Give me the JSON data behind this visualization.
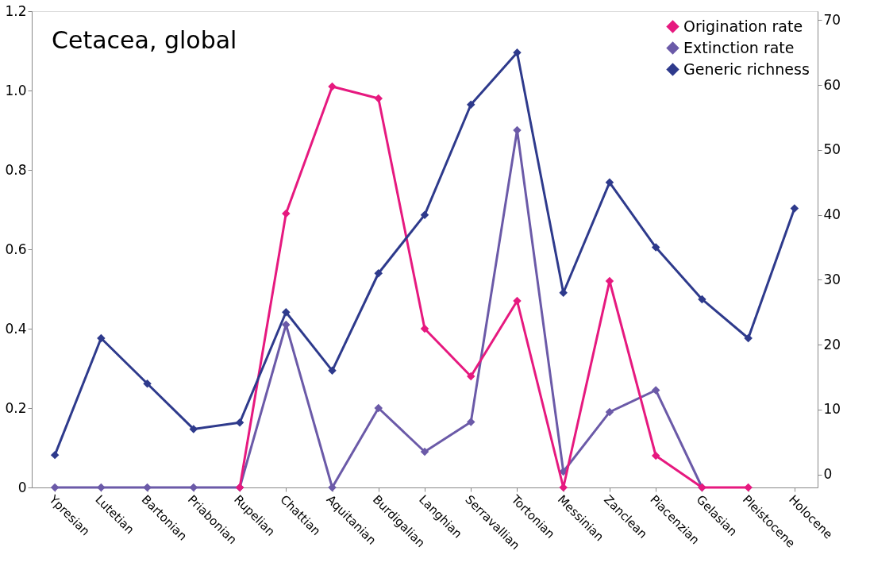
{
  "chart_data": {
    "type": "line",
    "title": "Cetacea, global",
    "categories": [
      "Ypresian",
      "Lutetian",
      "Bartonian",
      "Priabonian",
      "Rupelian",
      "Chattian",
      "Aquitanian",
      "Burdigalian",
      "Langhian",
      "Serravallian",
      "Tortonian",
      "Messinian",
      "Zanclean",
      "Piacenzian",
      "Gelasian",
      "Pleistocene",
      "Holocene"
    ],
    "series": [
      {
        "name": "Origination rate",
        "color": "#e6197f",
        "values": [
          null,
          null,
          null,
          null,
          0,
          0.69,
          1.01,
          0.98,
          0.4,
          0.28,
          0.47,
          0,
          0.52,
          0.08,
          0,
          0,
          null
        ]
      },
      {
        "name": "Extinction rate",
        "color": "#6b5aa8",
        "values": [
          0,
          0,
          0,
          0,
          0,
          0.41,
          0,
          0.2,
          0.09,
          0.165,
          0.9,
          0.04,
          0.19,
          0.245,
          0,
          null,
          null
        ]
      },
      {
        "name": "Generic richness",
        "color": "#2e3a8c",
        "axis": "y2",
        "values": [
          3,
          21,
          14,
          7,
          8,
          25,
          16,
          31,
          40,
          57,
          65,
          28,
          45,
          35,
          27,
          21,
          41
        ]
      }
    ],
    "ylim": [
      0,
      1.2
    ],
    "yticks": [
      0,
      0.2,
      0.4,
      0.6,
      0.8,
      {
        "value": 1,
        "label": "1.0"
      },
      1.2
    ],
    "y2lim": [
      -2,
      71.4
    ],
    "y2ticks": [
      0,
      10,
      20,
      30,
      40,
      50,
      60,
      70
    ],
    "marker": "diamond",
    "legend": "top right",
    "grid": false
  }
}
